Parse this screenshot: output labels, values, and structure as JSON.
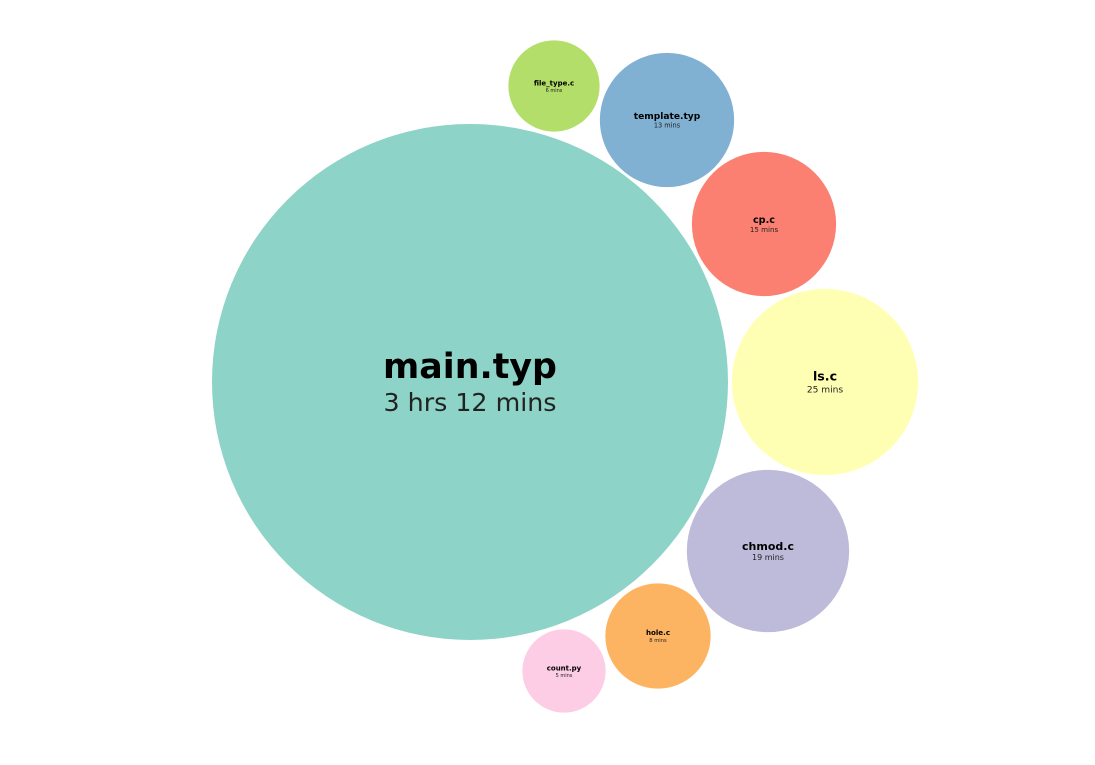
{
  "chart_data": {
    "type": "bubble",
    "unit_label": "mins",
    "series": [
      {
        "name": "main.typ",
        "label": "3 hrs 12 mins",
        "minutes": 192,
        "color": "#8dd3c7"
      },
      {
        "name": "file_type.c",
        "label": "6 mins",
        "minutes": 6,
        "color": "#b3de69"
      },
      {
        "name": "template.typ",
        "label": "13 mins",
        "minutes": 13,
        "color": "#80b1d3"
      },
      {
        "name": "cp.c",
        "label": "15 mins",
        "minutes": 15,
        "color": "#fb8072"
      },
      {
        "name": "ls.c",
        "label": "25 mins",
        "minutes": 25,
        "color": "#ffffb3"
      },
      {
        "name": "chmod.c",
        "label": "19 mins",
        "minutes": 19,
        "color": "#bebada"
      },
      {
        "name": "hole.c",
        "label": "8 mins",
        "minutes": 8,
        "color": "#fdb462"
      },
      {
        "name": "count.py",
        "label": "5 mins",
        "minutes": 5,
        "color": "#fccde5"
      }
    ]
  }
}
